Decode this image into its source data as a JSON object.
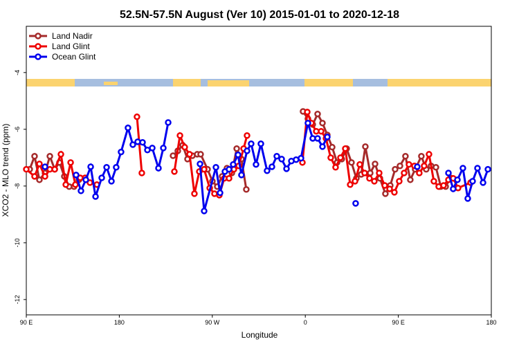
{
  "chart_data": {
    "type": "line",
    "title": "52.5N-57.5N August (Ver 10)   2015-01-01 to 2020-12-18",
    "x_label": "Longitude",
    "y_label": "XCO2 - MLO trend (ppm)",
    "xlim": [
      90,
      540
    ],
    "ylim": [
      -2.37,
      -12.54
    ],
    "xticks": [
      {
        "value": 90,
        "label": "90 E"
      },
      {
        "value": 180,
        "label": "180"
      },
      {
        "value": 270,
        "label": "90 W"
      },
      {
        "value": 360,
        "label": "0"
      },
      {
        "value": 450,
        "label": "90 E"
      },
      {
        "value": 540,
        "label": "180"
      }
    ],
    "yticks": [
      -4,
      -6,
      -8,
      -10,
      -12
    ],
    "legend": "top-left",
    "series": [
      {
        "name": "Land Nadir",
        "color": "#a52a2a",
        "x": [
          93.3,
          98.0,
          102.7,
          108.1,
          112.8,
          117.5,
          122.1,
          126.8,
          131.5,
          136.2,
          140.9,
          null,
          232.0,
          236.6,
          241.3,
          246.0,
          250.7,
          255.4,
          258.7,
          265.4,
          270.1,
          274.8,
          279.5,
          284.2,
          288.9,
          293.6,
          298.2,
          302.9,
          null,
          357.8,
          362.5,
          367.2,
          371.9,
          376.6,
          381.3,
          386.0,
          390.7,
          395.3,
          400.0,
          404.7,
          409.4,
          414.1,
          418.1,
          422.8,
          427.5,
          432.2,
          437.5,
          442.2,
          446.9,
          451.6,
          456.9,
          461.6,
          466.3,
          472.3,
          477.0,
          481.7,
          486.4,
          491.1,
          495.8,
          500.5
        ],
        "values": [
          -7.41,
          -6.95,
          -7.78,
          -7.54,
          -6.95,
          -7.41,
          -7.17,
          -7.66,
          -8.02,
          -8.02,
          -7.78,
          null,
          -6.93,
          -6.76,
          -6.56,
          -7.05,
          -6.93,
          -6.88,
          -6.88,
          -7.41,
          -7.83,
          -8.02,
          -7.66,
          -7.37,
          -7.54,
          -6.68,
          -7.05,
          -8.12,
          null,
          -5.37,
          -5.63,
          -5.83,
          -5.46,
          -5.78,
          -6.2,
          -6.63,
          -7.17,
          -7.05,
          -6.68,
          -7.17,
          -7.73,
          -7.59,
          -6.61,
          -7.54,
          -7.22,
          -7.73,
          -8.27,
          -7.98,
          -7.41,
          -7.29,
          -6.95,
          -7.78,
          -7.41,
          -6.95,
          -7.41,
          -7.29,
          -7.34,
          -8.02,
          -8.02,
          -7.71
        ]
      },
      {
        "name": "Land Glint",
        "color": "#ee0000",
        "x": [
          90.0,
          98.0,
          102.7,
          108.1,
          112.8,
          117.5,
          123.5,
          128.2,
          132.9,
          137.5,
          142.2,
          146.9,
          151.6,
          158.3,
          null,
          197.1,
          201.8,
          null,
          233.3,
          238.7,
          243.3,
          248.0,
          252.7,
          257.4,
          262.1,
          267.5,
          272.1,
          276.8,
          281.5,
          286.2,
          290.9,
          295.6,
          300.3,
          303.6,
          null,
          357.2,
          361.9,
          365.9,
          370.6,
          375.3,
          380.0,
          384.6,
          389.3,
          394.0,
          398.7,
          403.4,
          408.1,
          412.7,
          417.4,
          422.1,
          426.8,
          431.5,
          436.9,
          441.6,
          446.2,
          450.9,
          455.6,
          460.3,
          465.6,
          470.3,
          475.0,
          479.7,
          484.4,
          489.1,
          493.8,
          498.5,
          503.1,
          507.8,
          519.9
        ],
        "values": [
          -7.41,
          -7.66,
          -7.22,
          -7.66,
          -7.41,
          -7.41,
          -6.88,
          -7.95,
          -7.17,
          -7.95,
          -7.71,
          -7.71,
          -7.88,
          -7.95,
          null,
          -5.56,
          -7.54,
          null,
          -7.49,
          -6.22,
          -6.63,
          -6.88,
          -8.27,
          -7.49,
          -7.41,
          -8.07,
          -8.27,
          -8.32,
          -7.73,
          -7.73,
          -7.41,
          -7.29,
          -6.68,
          -6.22,
          null,
          -7.17,
          -5.39,
          -5.78,
          -6.07,
          -6.07,
          -6.32,
          -7.0,
          -7.34,
          -7.0,
          -6.68,
          -7.95,
          -7.83,
          -7.24,
          -7.54,
          -7.73,
          -7.83,
          -7.54,
          -7.98,
          -8.1,
          -8.22,
          -7.83,
          -7.54,
          -7.24,
          -7.29,
          -7.54,
          -7.29,
          -6.88,
          -7.83,
          -8.02,
          -7.98,
          -7.78,
          -7.73,
          -8.07,
          -7.88
        ]
      },
      {
        "name": "Ocean Glint",
        "color": "#0000ee",
        "x": [
          108.1,
          null,
          138.2,
          142.9,
          147.6,
          152.3,
          157.0,
          163.0,
          167.7,
          172.4,
          177.0,
          181.7,
          188.4,
          193.1,
          197.8,
          202.5,
          207.2,
          211.9,
          217.9,
          222.6,
          227.3,
          null,
          258.1,
          262.1,
          273.5,
          277.5,
          282.2,
          286.2,
          290.2,
          294.9,
          298.2,
          303.6,
          307.6,
          312.3,
          317.0,
          323.0,
          327.7,
          332.4,
          337.1,
          341.8,
          346.5,
          351.1,
          355.8,
          362.5,
          367.2,
          371.9,
          376.6,
          381.3,
          null,
          408.7,
          null,
          468.3,
          null,
          498.5,
          503.1,
          507.2,
          512.5,
          517.2,
          521.9,
          526.6,
          532.0,
          536.7
        ],
        "values": [
          -7.32,
          null,
          -7.61,
          -8.17,
          -7.78,
          -7.32,
          -8.37,
          -7.71,
          -7.34,
          -7.83,
          -7.34,
          -6.8,
          -5.95,
          -6.54,
          -6.44,
          -6.46,
          -6.73,
          -6.66,
          -7.37,
          -6.66,
          -5.76,
          null,
          -7.22,
          -8.88,
          -7.34,
          -8.24,
          -7.49,
          -7.41,
          -7.24,
          -6.9,
          -7.61,
          -6.76,
          -6.51,
          -7.24,
          -6.51,
          -7.46,
          -7.32,
          -6.95,
          -7.05,
          -7.39,
          -7.12,
          -7.07,
          -7.02,
          -5.78,
          -6.32,
          -6.32,
          -6.61,
          -6.27,
          null,
          -8.61,
          null,
          -7.32,
          null,
          -7.54,
          -8.1,
          -7.78,
          -7.37,
          -8.44,
          -7.83,
          -7.37,
          -7.88,
          -7.41
        ]
      }
    ]
  }
}
